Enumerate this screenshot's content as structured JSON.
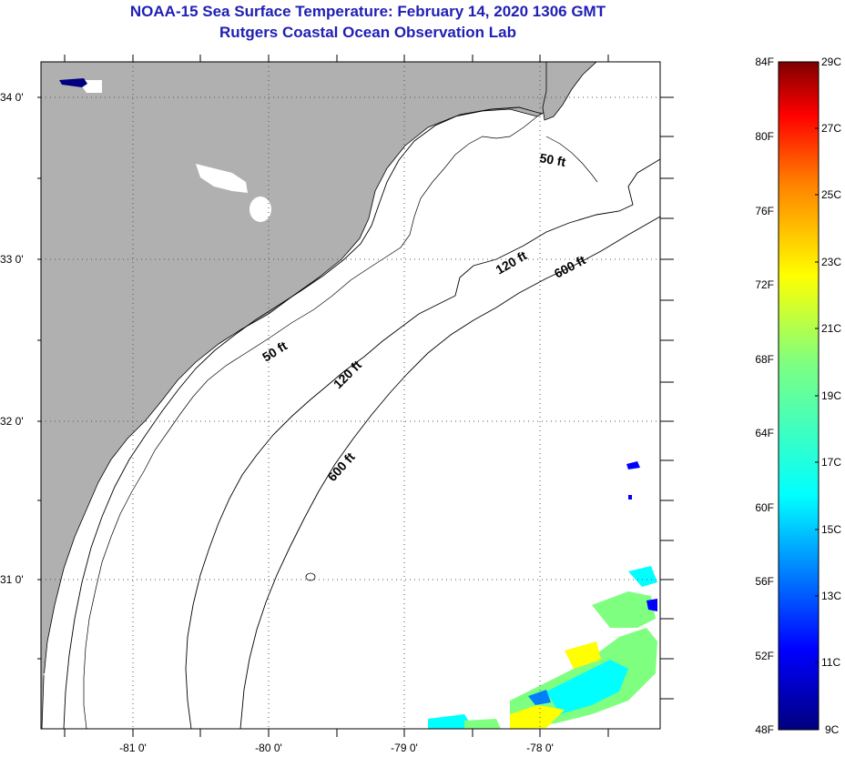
{
  "header": {
    "title": "NOAA-15 Sea Surface Temperature:  February 14, 2020 1306 GMT",
    "subtitle": "Rutgers Coastal Ocean Observation Lab"
  },
  "map": {
    "lat_labels": [
      "34 0'",
      "33 0'",
      "32 0'",
      "31 0'"
    ],
    "lon_labels": [
      "-81 0'",
      "-80 0'",
      "-79 0'",
      "-78 0'"
    ],
    "contours": [
      {
        "label": "50 ft"
      },
      {
        "label": "50 ft"
      },
      {
        "label": "120 ft"
      },
      {
        "label": "120 ft"
      },
      {
        "label": "600 ft"
      },
      {
        "label": "600 ft"
      }
    ],
    "colors": {
      "land": "#b0b0b0",
      "ocean_nodata": "#ffffff",
      "coast": "#000000"
    }
  },
  "colorbar": {
    "fahrenheit_labels": [
      "84F",
      "80F",
      "76F",
      "72F",
      "68F",
      "64F",
      "60F",
      "56F",
      "52F",
      "48F"
    ],
    "celsius_labels": [
      "29C",
      "27C",
      "25C",
      "23C",
      "21C",
      "19C",
      "17C",
      "15C",
      "13C",
      "11C",
      "9C"
    ],
    "range_c": [
      9,
      29
    ],
    "palette": [
      "#00007f",
      "#0000ff",
      "#007fff",
      "#00ffff",
      "#7fff7f",
      "#ffff00",
      "#ff7f00",
      "#ff0000",
      "#7f0000"
    ]
  }
}
